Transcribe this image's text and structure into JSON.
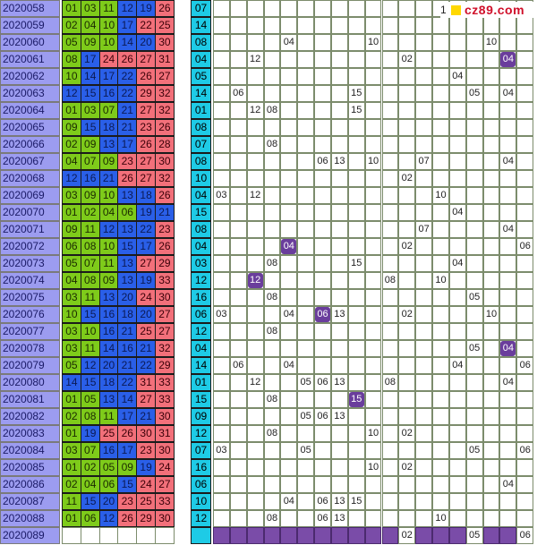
{
  "colors": {
    "green": "#7ecb1a",
    "blue": "#2a5fe8",
    "red": "#f2707a",
    "cyan": "#1ecbe6",
    "period": "#9c9cf0",
    "hit": "#6a3d9c"
  },
  "logo": {
    "lead": "1",
    "text": "cz89.com"
  },
  "rows": [
    {
      "period": "2020058",
      "nums": [
        "01",
        "03",
        "11",
        "12",
        "19",
        "26"
      ],
      "colors": [
        "g",
        "g",
        "g",
        "b",
        "b",
        "r"
      ],
      "back": "07",
      "miss": []
    },
    {
      "period": "2020059",
      "nums": [
        "02",
        "04",
        "10",
        "17",
        "22",
        "25"
      ],
      "colors": [
        "g",
        "g",
        "g",
        "b",
        "r",
        "r"
      ],
      "back": "14",
      "miss": []
    },
    {
      "period": "2020060",
      "nums": [
        "05",
        "09",
        "10",
        "14",
        "20",
        "30"
      ],
      "colors": [
        "g",
        "g",
        "g",
        "b",
        "b",
        "r"
      ],
      "back": "08",
      "miss": [
        {
          "col": 4,
          "v": "04"
        },
        {
          "col": 9,
          "v": "10"
        },
        {
          "col": 16,
          "v": "10"
        }
      ]
    },
    {
      "period": "2020061",
      "nums": [
        "08",
        "17",
        "24",
        "26",
        "27",
        "31"
      ],
      "colors": [
        "g",
        "b",
        "r",
        "r",
        "r",
        "r"
      ],
      "back": "04",
      "miss": [
        {
          "col": 2,
          "v": "12"
        },
        {
          "col": 11,
          "v": "02"
        },
        {
          "col": 17,
          "v": "04",
          "hit": true
        }
      ]
    },
    {
      "period": "2020062",
      "nums": [
        "10",
        "14",
        "17",
        "22",
        "26",
        "27"
      ],
      "colors": [
        "g",
        "b",
        "b",
        "b",
        "r",
        "r"
      ],
      "back": "05",
      "miss": [
        {
          "col": 14,
          "v": "04"
        }
      ]
    },
    {
      "period": "2020063",
      "nums": [
        "12",
        "15",
        "16",
        "22",
        "29",
        "32"
      ],
      "colors": [
        "b",
        "b",
        "b",
        "b",
        "r",
        "r"
      ],
      "back": "14",
      "miss": [
        {
          "col": 1,
          "v": "06"
        },
        {
          "col": 8,
          "v": "15"
        },
        {
          "col": 15,
          "v": "05"
        },
        {
          "col": 17,
          "v": "04"
        }
      ]
    },
    {
      "period": "2020064",
      "nums": [
        "01",
        "03",
        "07",
        "21",
        "27",
        "32"
      ],
      "colors": [
        "g",
        "g",
        "g",
        "b",
        "r",
        "r"
      ],
      "back": "01",
      "miss": [
        {
          "col": 2,
          "v": "12"
        },
        {
          "col": 3,
          "v": "08"
        },
        {
          "col": 8,
          "v": "15"
        }
      ]
    },
    {
      "period": "2020065",
      "nums": [
        "09",
        "15",
        "18",
        "21",
        "23",
        "26"
      ],
      "colors": [
        "g",
        "b",
        "b",
        "b",
        "r",
        "r"
      ],
      "back": "08",
      "miss": []
    },
    {
      "period": "2020066",
      "nums": [
        "02",
        "09",
        "13",
        "17",
        "26",
        "28"
      ],
      "colors": [
        "g",
        "g",
        "b",
        "b",
        "r",
        "r"
      ],
      "back": "07",
      "miss": [
        {
          "col": 3,
          "v": "08"
        }
      ]
    },
    {
      "period": "2020067",
      "nums": [
        "04",
        "07",
        "09",
        "23",
        "27",
        "30"
      ],
      "colors": [
        "g",
        "g",
        "g",
        "r",
        "r",
        "r"
      ],
      "back": "08",
      "miss": [
        {
          "col": 6,
          "v": "06"
        },
        {
          "col": 7,
          "v": "13"
        },
        {
          "col": 9,
          "v": "10"
        },
        {
          "col": 12,
          "v": "07"
        },
        {
          "col": 17,
          "v": "04"
        }
      ]
    },
    {
      "period": "2020068",
      "nums": [
        "12",
        "16",
        "21",
        "26",
        "27",
        "32"
      ],
      "colors": [
        "b",
        "b",
        "b",
        "r",
        "r",
        "r"
      ],
      "back": "10",
      "miss": [
        {
          "col": 11,
          "v": "02"
        }
      ]
    },
    {
      "period": "2020069",
      "nums": [
        "03",
        "09",
        "10",
        "13",
        "18",
        "26"
      ],
      "colors": [
        "g",
        "g",
        "g",
        "b",
        "b",
        "r"
      ],
      "back": "04",
      "miss": [
        {
          "col": 0,
          "v": "03"
        },
        {
          "col": 2,
          "v": "12"
        },
        {
          "col": 13,
          "v": "10"
        }
      ]
    },
    {
      "period": "2020070",
      "nums": [
        "01",
        "02",
        "04",
        "06",
        "19",
        "21"
      ],
      "colors": [
        "g",
        "g",
        "g",
        "g",
        "b",
        "b"
      ],
      "back": "15",
      "miss": [
        {
          "col": 14,
          "v": "04"
        }
      ]
    },
    {
      "period": "2020071",
      "nums": [
        "09",
        "11",
        "12",
        "13",
        "22",
        "23"
      ],
      "colors": [
        "g",
        "g",
        "b",
        "b",
        "b",
        "r"
      ],
      "back": "08",
      "miss": [
        {
          "col": 12,
          "v": "07"
        },
        {
          "col": 17,
          "v": "04"
        }
      ]
    },
    {
      "period": "2020072",
      "nums": [
        "06",
        "08",
        "10",
        "15",
        "17",
        "26"
      ],
      "colors": [
        "g",
        "g",
        "g",
        "b",
        "b",
        "r"
      ],
      "back": "04",
      "miss": [
        {
          "col": 4,
          "v": "04",
          "hit": true
        },
        {
          "col": 11,
          "v": "02"
        },
        {
          "col": 18,
          "v": "06"
        }
      ]
    },
    {
      "period": "2020073",
      "nums": [
        "05",
        "07",
        "11",
        "13",
        "27",
        "29"
      ],
      "colors": [
        "g",
        "g",
        "g",
        "b",
        "r",
        "r"
      ],
      "back": "03",
      "miss": [
        {
          "col": 3,
          "v": "08"
        },
        {
          "col": 8,
          "v": "15"
        },
        {
          "col": 14,
          "v": "04"
        }
      ]
    },
    {
      "period": "2020074",
      "nums": [
        "04",
        "08",
        "09",
        "13",
        "19",
        "33"
      ],
      "colors": [
        "g",
        "g",
        "g",
        "b",
        "b",
        "r"
      ],
      "back": "12",
      "miss": [
        {
          "col": 2,
          "v": "12",
          "hit": true
        },
        {
          "col": 10,
          "v": "08"
        },
        {
          "col": 13,
          "v": "10"
        }
      ]
    },
    {
      "period": "2020075",
      "nums": [
        "03",
        "11",
        "13",
        "20",
        "24",
        "30"
      ],
      "colors": [
        "g",
        "g",
        "b",
        "b",
        "r",
        "r"
      ],
      "back": "16",
      "miss": [
        {
          "col": 3,
          "v": "08"
        },
        {
          "col": 15,
          "v": "05"
        }
      ]
    },
    {
      "period": "2020076",
      "nums": [
        "10",
        "15",
        "16",
        "18",
        "20",
        "27"
      ],
      "colors": [
        "g",
        "b",
        "b",
        "b",
        "b",
        "r"
      ],
      "back": "06",
      "miss": [
        {
          "col": 0,
          "v": "03"
        },
        {
          "col": 4,
          "v": "04"
        },
        {
          "col": 6,
          "v": "06",
          "hit": true
        },
        {
          "col": 7,
          "v": "13"
        },
        {
          "col": 11,
          "v": "02"
        },
        {
          "col": 16,
          "v": "10"
        }
      ]
    },
    {
      "period": "2020077",
      "nums": [
        "03",
        "10",
        "16",
        "21",
        "25",
        "27"
      ],
      "colors": [
        "g",
        "g",
        "b",
        "b",
        "r",
        "r"
      ],
      "back": "12",
      "miss": [
        {
          "col": 3,
          "v": "08"
        }
      ]
    },
    {
      "period": "2020078",
      "nums": [
        "03",
        "11",
        "14",
        "16",
        "21",
        "32"
      ],
      "colors": [
        "g",
        "g",
        "b",
        "b",
        "b",
        "r"
      ],
      "back": "04",
      "miss": [
        {
          "col": 15,
          "v": "05"
        },
        {
          "col": 17,
          "v": "04",
          "hit": true
        }
      ]
    },
    {
      "period": "2020079",
      "nums": [
        "05",
        "12",
        "20",
        "21",
        "22",
        "29"
      ],
      "colors": [
        "g",
        "b",
        "b",
        "b",
        "b",
        "r"
      ],
      "back": "14",
      "miss": [
        {
          "col": 1,
          "v": "06"
        },
        {
          "col": 4,
          "v": "04"
        },
        {
          "col": 14,
          "v": "04"
        },
        {
          "col": 18,
          "v": "06"
        }
      ]
    },
    {
      "period": "2020080",
      "nums": [
        "14",
        "15",
        "18",
        "22",
        "31",
        "33"
      ],
      "colors": [
        "b",
        "b",
        "b",
        "b",
        "r",
        "r"
      ],
      "back": "01",
      "miss": [
        {
          "col": 2,
          "v": "12"
        },
        {
          "col": 5,
          "v": "05"
        },
        {
          "col": 6,
          "v": "06"
        },
        {
          "col": 7,
          "v": "13"
        },
        {
          "col": 10,
          "v": "08"
        },
        {
          "col": 17,
          "v": "04"
        }
      ]
    },
    {
      "period": "2020081",
      "nums": [
        "01",
        "05",
        "13",
        "14",
        "27",
        "33"
      ],
      "colors": [
        "g",
        "g",
        "b",
        "b",
        "r",
        "r"
      ],
      "back": "15",
      "miss": [
        {
          "col": 3,
          "v": "08"
        },
        {
          "col": 8,
          "v": "15",
          "hit": true
        }
      ]
    },
    {
      "period": "2020082",
      "nums": [
        "02",
        "08",
        "11",
        "17",
        "21",
        "30"
      ],
      "colors": [
        "g",
        "g",
        "g",
        "b",
        "b",
        "r"
      ],
      "back": "09",
      "miss": [
        {
          "col": 5,
          "v": "05"
        },
        {
          "col": 6,
          "v": "06"
        },
        {
          "col": 7,
          "v": "13"
        }
      ]
    },
    {
      "period": "2020083",
      "nums": [
        "01",
        "19",
        "25",
        "26",
        "30",
        "31"
      ],
      "colors": [
        "g",
        "b",
        "r",
        "r",
        "r",
        "r"
      ],
      "back": "12",
      "miss": [
        {
          "col": 3,
          "v": "08"
        },
        {
          "col": 9,
          "v": "10"
        },
        {
          "col": 11,
          "v": "02"
        }
      ]
    },
    {
      "period": "2020084",
      "nums": [
        "03",
        "07",
        "16",
        "17",
        "23",
        "30"
      ],
      "colors": [
        "g",
        "g",
        "b",
        "b",
        "r",
        "r"
      ],
      "back": "07",
      "miss": [
        {
          "col": 0,
          "v": "03"
        },
        {
          "col": 5,
          "v": "05"
        },
        {
          "col": 15,
          "v": "05"
        },
        {
          "col": 18,
          "v": "06"
        }
      ]
    },
    {
      "period": "2020085",
      "nums": [
        "01",
        "02",
        "05",
        "09",
        "19",
        "24"
      ],
      "colors": [
        "g",
        "g",
        "g",
        "g",
        "b",
        "r"
      ],
      "back": "16",
      "miss": [
        {
          "col": 9,
          "v": "10"
        },
        {
          "col": 11,
          "v": "02"
        }
      ]
    },
    {
      "period": "2020086",
      "nums": [
        "02",
        "04",
        "06",
        "15",
        "24",
        "27"
      ],
      "colors": [
        "g",
        "g",
        "g",
        "b",
        "r",
        "r"
      ],
      "back": "06",
      "miss": [
        {
          "col": 17,
          "v": "04"
        }
      ]
    },
    {
      "period": "2020087",
      "nums": [
        "11",
        "15",
        "20",
        "23",
        "25",
        "33"
      ],
      "colors": [
        "g",
        "b",
        "b",
        "r",
        "r",
        "r"
      ],
      "back": "10",
      "miss": [
        {
          "col": 4,
          "v": "04"
        },
        {
          "col": 6,
          "v": "06"
        },
        {
          "col": 7,
          "v": "13"
        },
        {
          "col": 8,
          "v": "15"
        }
      ]
    },
    {
      "period": "2020088",
      "nums": [
        "01",
        "06",
        "12",
        "26",
        "29",
        "30"
      ],
      "colors": [
        "g",
        "g",
        "b",
        "r",
        "r",
        "r"
      ],
      "back": "12",
      "miss": [
        {
          "col": 3,
          "v": "08"
        },
        {
          "col": 6,
          "v": "06"
        },
        {
          "col": 7,
          "v": "13"
        },
        {
          "col": 13,
          "v": "10"
        }
      ]
    }
  ],
  "last": {
    "period": "2020089",
    "miss": [
      {
        "col": 11,
        "v": "02"
      },
      {
        "col": 15,
        "v": "05"
      },
      {
        "col": 18,
        "v": "06"
      }
    ]
  }
}
